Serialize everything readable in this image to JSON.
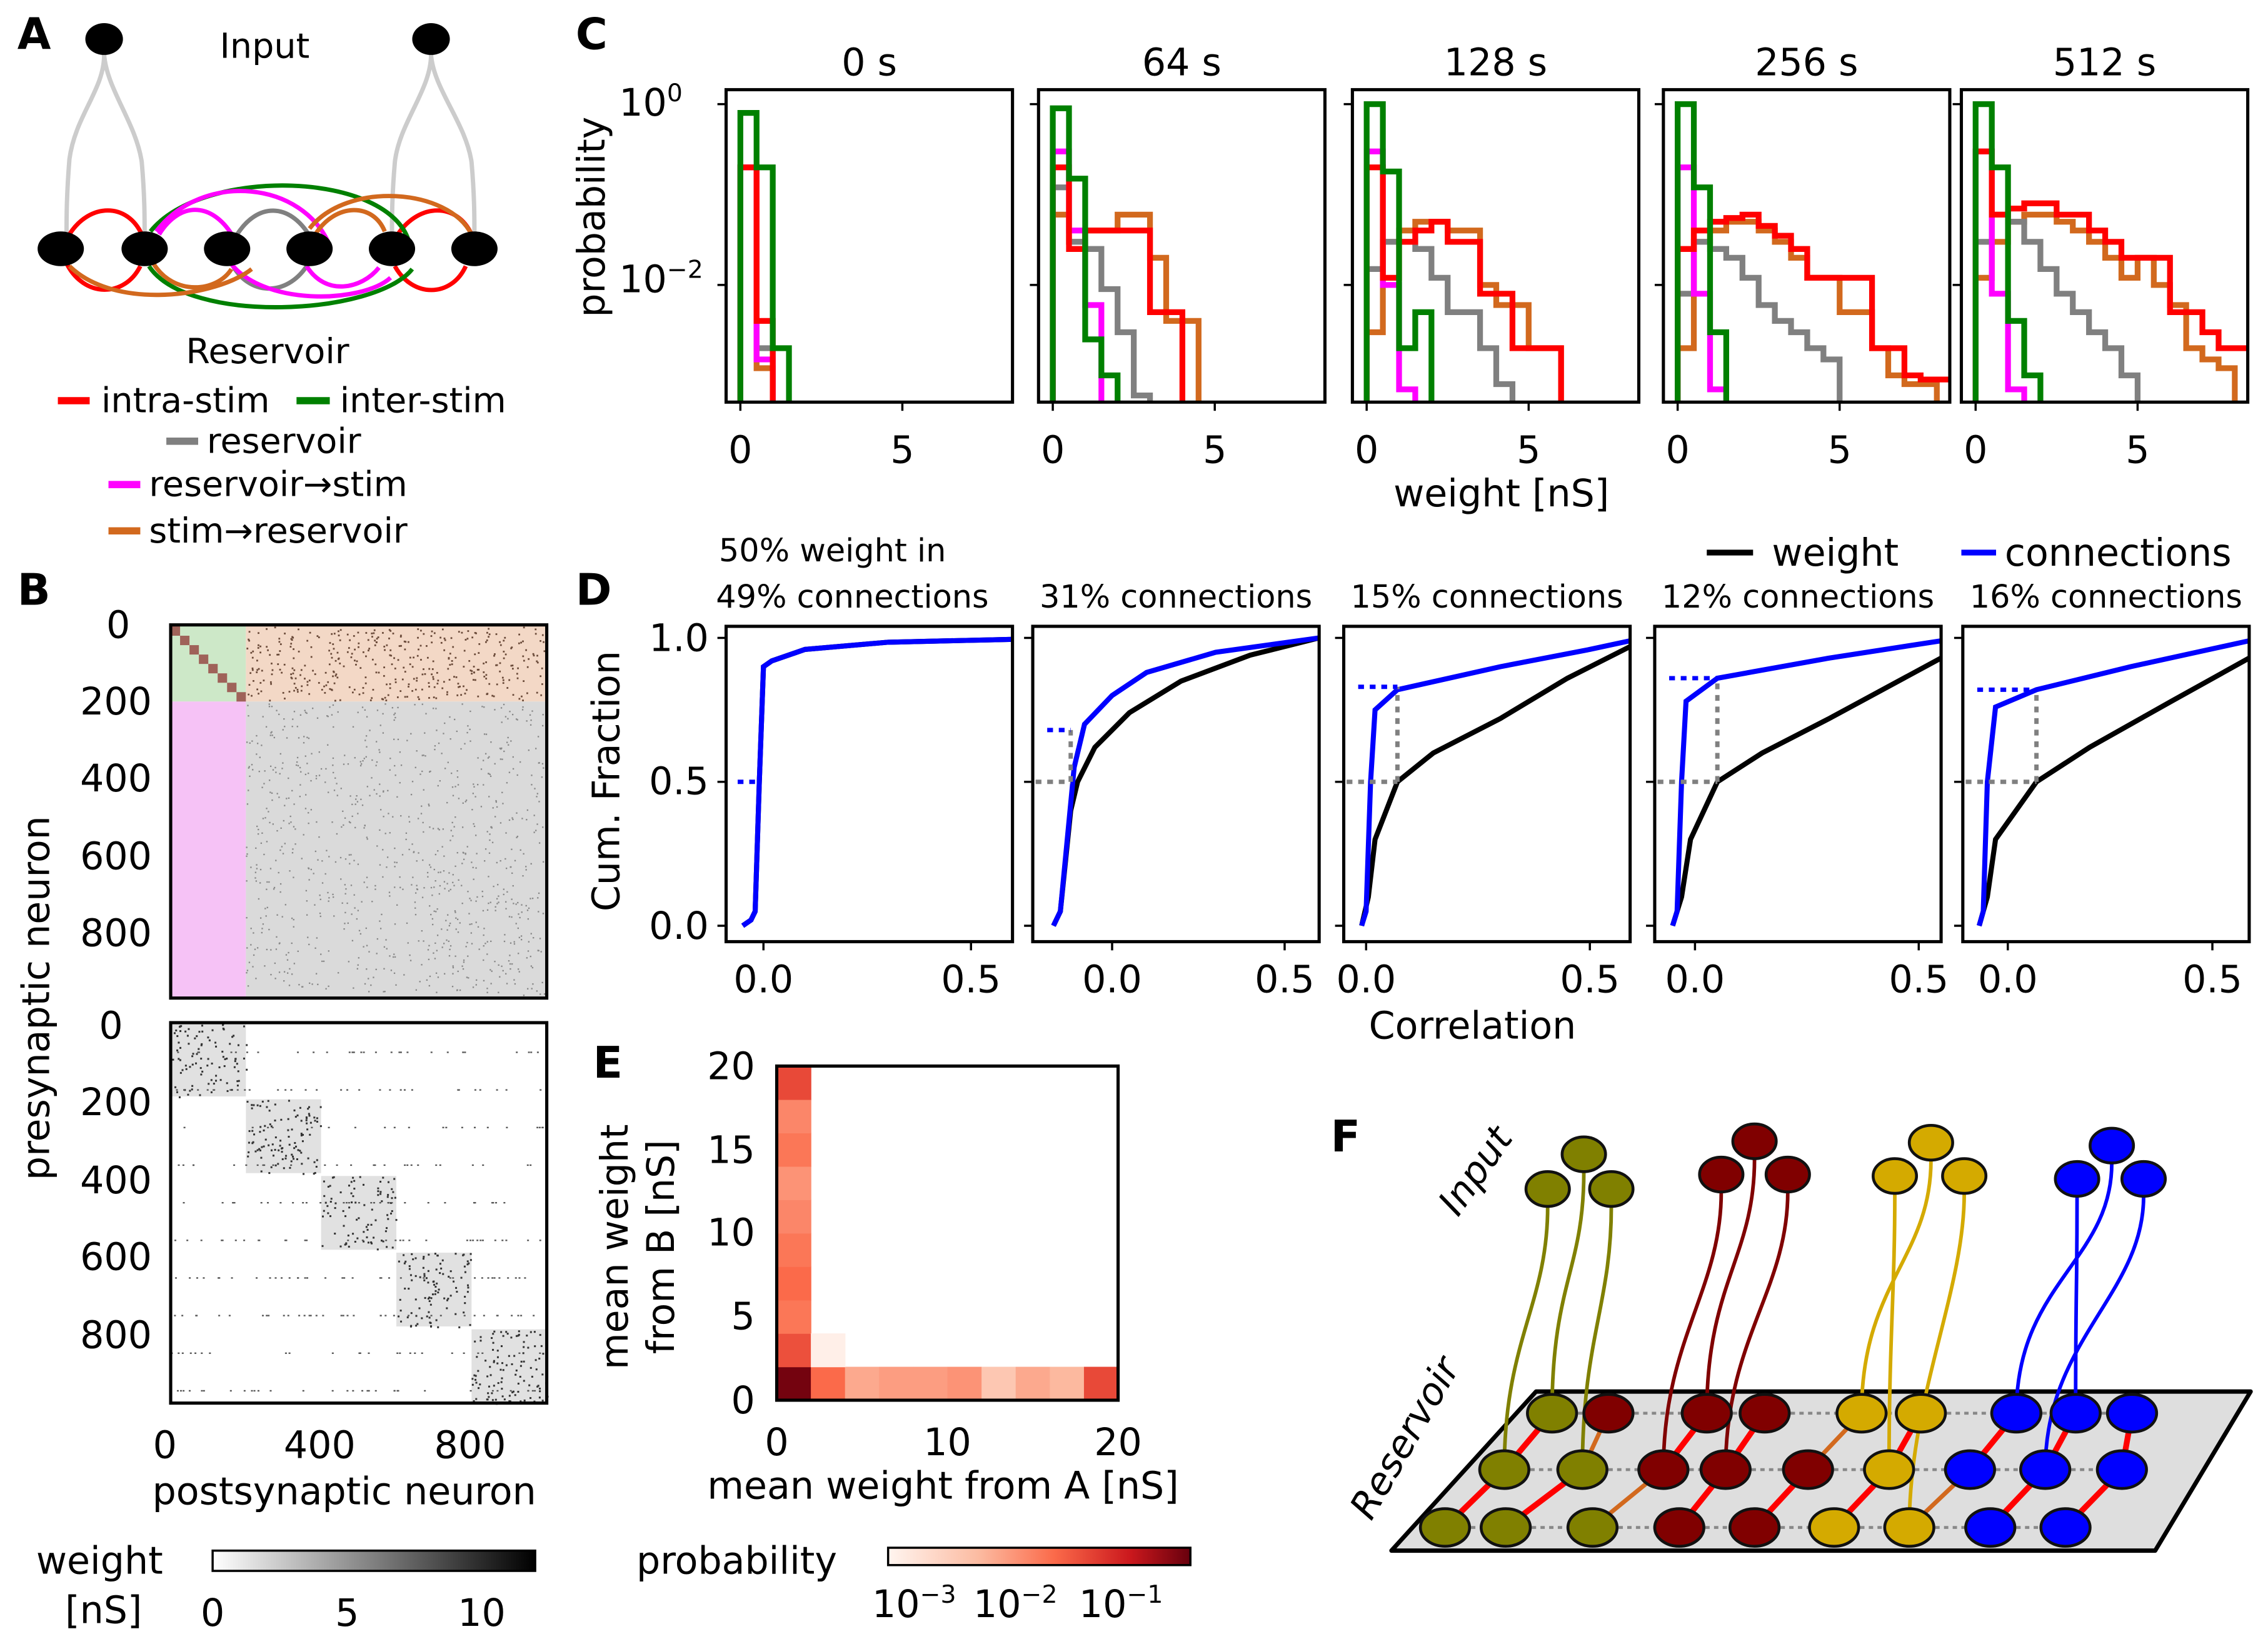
{
  "panel_labels": {
    "a": "A",
    "b": "B",
    "c": "C",
    "d": "D",
    "e": "E",
    "f": "F"
  },
  "colors": {
    "intra": "#ff0000",
    "inter": "#008000",
    "reservoir": "#808080",
    "res_to_stim": "#ff00ff",
    "stim_to_res": "#d2691e",
    "weight": "#000000",
    "connections": "#0000ff",
    "olive": "#808000",
    "darkred": "#800000",
    "gold": "#d4aa00",
    "blue": "#0000ff"
  },
  "panel_a": {
    "input_label": "Input",
    "reservoir_label": "Reservoir",
    "legend": [
      {
        "label": "intra-stim",
        "color": "#ff0000"
      },
      {
        "label": "inter-stim",
        "color": "#008000"
      },
      {
        "label": "reservoir",
        "color": "#808080"
      },
      {
        "label": "reservoir→stim",
        "color": "#ff00ff"
      },
      {
        "label": "stim→reservoir",
        "color": "#d2691e"
      }
    ]
  },
  "panel_b": {
    "ylabel": "presynaptic neuron",
    "xlabel": "postsynaptic neuron",
    "yticks": [
      "0",
      "200",
      "400",
      "600",
      "800"
    ],
    "xticks": [
      "0",
      "400",
      "800"
    ],
    "colorbar_label_1": "weight",
    "colorbar_label_2": "[nS]",
    "colorbar_ticks": [
      "0",
      "5",
      "10"
    ]
  },
  "panel_f": {
    "input_label": "Input",
    "reservoir_label": "Reservoir"
  },
  "chart_data": [
    {
      "type": "step-histogram",
      "id": "C",
      "ylabel": "probability",
      "xlabel": "weight [nS]",
      "yscale": "log",
      "ylim": [
        0.0005,
        1.5
      ],
      "xlim": [
        -0.44,
        8.4
      ],
      "bin_width": 0.5,
      "xticks": [
        "0",
        "5"
      ],
      "yticks": [
        {
          "base": "10",
          "exp": "0"
        },
        {
          "base": "10",
          "exp": "−2"
        }
      ],
      "panels": [
        {
          "title": "0 s",
          "series": [
            {
              "name": "stim→reservoir",
              "color": "#d2691e",
              "values": [
                0.2,
                0.0012
              ]
            },
            {
              "name": "reservoir",
              "color": "#808080",
              "values": [
                0.2,
                0.002
              ]
            },
            {
              "name": "reservoir→stim",
              "color": "#ff00ff",
              "values": [
                0.2,
                0.0015
              ]
            },
            {
              "name": "intra-stim",
              "color": "#ff0000",
              "values": [
                0.2,
                0.004
              ]
            },
            {
              "name": "inter-stim",
              "color": "#008000",
              "values": [
                0.8,
                0.2,
                0.002
              ]
            }
          ]
        },
        {
          "title": "64 s",
          "series": [
            {
              "name": "stim→reservoir",
              "color": "#d2691e",
              "values": [
                0.06,
                0.03,
                0.04,
                0.04,
                0.06,
                0.06,
                0.02,
                0.004,
                0.004
              ]
            },
            {
              "name": "reservoir",
              "color": "#808080",
              "values": [
                0.12,
                0.03,
                0.025,
                0.009,
                0.003,
                0.0006
              ]
            },
            {
              "name": "reservoir→stim",
              "color": "#ff00ff",
              "values": [
                0.3,
                0.04,
                0.006
              ]
            },
            {
              "name": "intra-stim",
              "color": "#ff0000",
              "values": [
                0.2,
                0.025,
                0.04,
                0.04,
                0.04,
                0.04,
                0.005,
                0.005
              ]
            },
            {
              "name": "inter-stim",
              "color": "#008000",
              "values": [
                0.9,
                0.15,
                0.0025,
                0.001
              ]
            }
          ]
        },
        {
          "title": "128 s",
          "series": [
            {
              "name": "stim→reservoir",
              "color": "#d2691e",
              "values": [
                0.003,
                0.03,
                0.04,
                0.05,
                0.05,
                0.04,
                0.04,
                0.01,
                0.006,
                0.006,
                0.002,
                0.002
              ]
            },
            {
              "name": "reservoir",
              "color": "#808080",
              "values": [
                0.015,
                0.03,
                0.03,
                0.025,
                0.012,
                0.005,
                0.005,
                0.002,
                0.0008
              ]
            },
            {
              "name": "reservoir→stim",
              "color": "#ff00ff",
              "values": [
                0.3,
                0.01,
                0.0007
              ]
            },
            {
              "name": "intra-stim",
              "color": "#ff0000",
              "values": [
                0.2,
                0.012,
                0.03,
                0.04,
                0.05,
                0.03,
                0.03,
                0.008,
                0.008,
                0.002,
                0.002,
                0.002
              ]
            },
            {
              "name": "inter-stim",
              "color": "#008000",
              "values": [
                1.0,
                0.18,
                0.002,
                0.005
              ]
            }
          ]
        },
        {
          "title": "256 s",
          "series": [
            {
              "name": "stim→reservoir",
              "color": "#d2691e",
              "values": [
                0.002,
                0.03,
                0.04,
                0.05,
                0.05,
                0.04,
                0.03,
                0.02,
                0.012,
                0.012,
                0.005,
                0.005,
                0.002,
                0.001,
                0.0008,
                0.0008
              ]
            },
            {
              "name": "reservoir",
              "color": "#808080",
              "values": [
                0.008,
                0.03,
                0.025,
                0.02,
                0.012,
                0.006,
                0.004,
                0.003,
                0.002,
                0.0015
              ]
            },
            {
              "name": "reservoir→stim",
              "color": "#ff00ff",
              "values": [
                0.2,
                0.008,
                0.0007
              ]
            },
            {
              "name": "intra-stim",
              "color": "#ff0000",
              "values": [
                0.025,
                0.04,
                0.05,
                0.055,
                0.06,
                0.045,
                0.035,
                0.025,
                0.012,
                0.012,
                0.012,
                0.012,
                0.002,
                0.002,
                0.001,
                0.0009,
                0.0009
              ]
            },
            {
              "name": "inter-stim",
              "color": "#008000",
              "values": [
                1.0,
                0.12,
                0.003
              ]
            }
          ]
        },
        {
          "title": "512 s",
          "series": [
            {
              "name": "stim→reservoir",
              "color": "#d2691e",
              "values": [
                0.012,
                0.03,
                0.05,
                0.06,
                0.06,
                0.05,
                0.04,
                0.03,
                0.02,
                0.012,
                0.02,
                0.01,
                0.006,
                0.002,
                0.0015,
                0.0012
              ]
            },
            {
              "name": "reservoir",
              "color": "#808080",
              "values": [
                0.03,
                0.06,
                0.05,
                0.03,
                0.015,
                0.008,
                0.005,
                0.003,
                0.002,
                0.001
              ]
            },
            {
              "name": "reservoir→stim",
              "color": "#ff00ff",
              "values": [
                0.3,
                0.008,
                0.0007
              ]
            },
            {
              "name": "intra-stim",
              "color": "#ff0000",
              "values": [
                0.3,
                0.06,
                0.07,
                0.08,
                0.08,
                0.06,
                0.06,
                0.04,
                0.03,
                0.02,
                0.02,
                0.02,
                0.005,
                0.005,
                0.003,
                0.002,
                0.002
              ]
            },
            {
              "name": "inter-stim",
              "color": "#008000",
              "values": [
                1.0,
                0.2,
                0.004,
                0.001
              ]
            }
          ]
        }
      ]
    },
    {
      "type": "line",
      "id": "D",
      "ylabel": "Cum. Fraction",
      "xlabel": "Correlation",
      "ylim": [
        -0.02,
        1.02
      ],
      "yticks": [
        "0.0",
        "0.5",
        "1.0"
      ],
      "xticks": [
        "0.0",
        "0.5"
      ],
      "legend": [
        {
          "label": "weight",
          "color": "#000000"
        },
        {
          "label": "connections",
          "color": "#0000ff"
        }
      ],
      "header_prefix": "50% weight in",
      "panels": [
        {
          "header": "49% connections",
          "xlim": [
            -0.09,
            0.6
          ],
          "threshold": null,
          "dot_level": 0.5,
          "weight": [
            [
              -0.05,
              0
            ],
            [
              -0.03,
              0.02
            ],
            [
              -0.02,
              0.05
            ],
            [
              -0.01,
              0.5
            ],
            [
              0,
              0.9
            ],
            [
              0.02,
              0.92
            ],
            [
              0.1,
              0.96
            ],
            [
              0.3,
              0.985
            ],
            [
              0.6,
              0.995
            ]
          ],
          "connections": [
            [
              -0.05,
              0
            ],
            [
              -0.03,
              0.02
            ],
            [
              -0.02,
              0.05
            ],
            [
              -0.01,
              0.5
            ],
            [
              0,
              0.9
            ],
            [
              0.02,
              0.92
            ],
            [
              0.1,
              0.96
            ],
            [
              0.3,
              0.985
            ],
            [
              0.6,
              0.995
            ]
          ]
        },
        {
          "header": "31% connections",
          "xlim": [
            -0.23,
            0.6
          ],
          "threshold": -0.12,
          "dot_level": 0.68,
          "weight": [
            [
              -0.17,
              0
            ],
            [
              -0.15,
              0.05
            ],
            [
              -0.12,
              0.4
            ],
            [
              -0.1,
              0.5
            ],
            [
              -0.05,
              0.62
            ],
            [
              0.05,
              0.74
            ],
            [
              0.2,
              0.85
            ],
            [
              0.4,
              0.94
            ],
            [
              0.6,
              1.0
            ]
          ],
          "connections": [
            [
              -0.17,
              0
            ],
            [
              -0.15,
              0.05
            ],
            [
              -0.13,
              0.3
            ],
            [
              -0.11,
              0.55
            ],
            [
              -0.08,
              0.7
            ],
            [
              0,
              0.8
            ],
            [
              0.1,
              0.88
            ],
            [
              0.3,
              0.95
            ],
            [
              0.6,
              1.0
            ]
          ]
        },
        {
          "header": "15% connections",
          "xlim": [
            -0.05,
            0.59
          ],
          "threshold": 0.07,
          "dot_level": 0.83,
          "weight": [
            [
              -0.01,
              0
            ],
            [
              0.005,
              0.1
            ],
            [
              0.02,
              0.3
            ],
            [
              0.07,
              0.5
            ],
            [
              0.15,
              0.6
            ],
            [
              0.3,
              0.72
            ],
            [
              0.45,
              0.86
            ],
            [
              0.59,
              0.97
            ]
          ],
          "connections": [
            [
              -0.01,
              0
            ],
            [
              0,
              0.05
            ],
            [
              0.01,
              0.5
            ],
            [
              0.02,
              0.75
            ],
            [
              0.07,
              0.82
            ],
            [
              0.3,
              0.9
            ],
            [
              0.5,
              0.96
            ],
            [
              0.59,
              0.99
            ]
          ]
        },
        {
          "header": "12% connections",
          "xlim": [
            -0.09,
            0.55
          ],
          "threshold": 0.05,
          "dot_level": 0.86,
          "weight": [
            [
              -0.05,
              0
            ],
            [
              -0.03,
              0.1
            ],
            [
              -0.01,
              0.3
            ],
            [
              0.05,
              0.5
            ],
            [
              0.15,
              0.6
            ],
            [
              0.3,
              0.72
            ],
            [
              0.55,
              0.93
            ]
          ],
          "connections": [
            [
              -0.05,
              0
            ],
            [
              -0.04,
              0.05
            ],
            [
              -0.03,
              0.5
            ],
            [
              -0.02,
              0.78
            ],
            [
              0.05,
              0.86
            ],
            [
              0.3,
              0.93
            ],
            [
              0.55,
              0.99
            ]
          ]
        },
        {
          "header": "16% connections",
          "xlim": [
            -0.11,
            0.59
          ],
          "threshold": 0.07,
          "dot_level": 0.82,
          "weight": [
            [
              -0.07,
              0
            ],
            [
              -0.05,
              0.1
            ],
            [
              -0.03,
              0.3
            ],
            [
              0.07,
              0.5
            ],
            [
              0.2,
              0.62
            ],
            [
              0.4,
              0.78
            ],
            [
              0.59,
              0.93
            ]
          ],
          "connections": [
            [
              -0.07,
              0
            ],
            [
              -0.06,
              0.05
            ],
            [
              -0.05,
              0.5
            ],
            [
              -0.03,
              0.76
            ],
            [
              0.07,
              0.82
            ],
            [
              0.3,
              0.9
            ],
            [
              0.59,
              0.99
            ]
          ]
        }
      ]
    },
    {
      "type": "heatmap",
      "id": "E",
      "xlabel": "mean weight from A [nS]",
      "ylabel_1": "mean weight",
      "ylabel_2": "from B [nS]",
      "xlim": [
        0,
        20
      ],
      "ylim": [
        0,
        20
      ],
      "bin_size": 2,
      "xticks": [
        "0",
        "10",
        "20"
      ],
      "yticks": [
        "0",
        "5",
        "10",
        "15",
        "20"
      ],
      "colorbar_label": "probability",
      "colorbar_range": [
        0.001,
        0.35
      ],
      "colorbar_ticks": [
        {
          "base": "10",
          "exp": "−3"
        },
        {
          "base": "10",
          "exp": "−2"
        },
        {
          "base": "10",
          "exp": "−1"
        }
      ],
      "cells": [
        [
          0,
          0,
          0.3
        ],
        [
          0,
          1,
          0.04
        ],
        [
          0,
          2,
          0.02
        ],
        [
          0,
          3,
          0.025
        ],
        [
          0,
          4,
          0.02
        ],
        [
          0,
          5,
          0.015
        ],
        [
          0,
          6,
          0.012
        ],
        [
          0,
          7,
          0.02
        ],
        [
          0,
          8,
          0.015
        ],
        [
          0,
          9,
          0.045
        ],
        [
          1,
          0,
          0.025
        ],
        [
          2,
          0,
          0.008
        ],
        [
          3,
          0,
          0.01
        ],
        [
          4,
          0,
          0.01
        ],
        [
          5,
          0,
          0.012
        ],
        [
          6,
          0,
          0.004
        ],
        [
          7,
          0,
          0.008
        ],
        [
          8,
          0,
          0.006
        ],
        [
          9,
          0,
          0.045
        ],
        [
          1,
          1,
          0.0012
        ]
      ]
    }
  ]
}
